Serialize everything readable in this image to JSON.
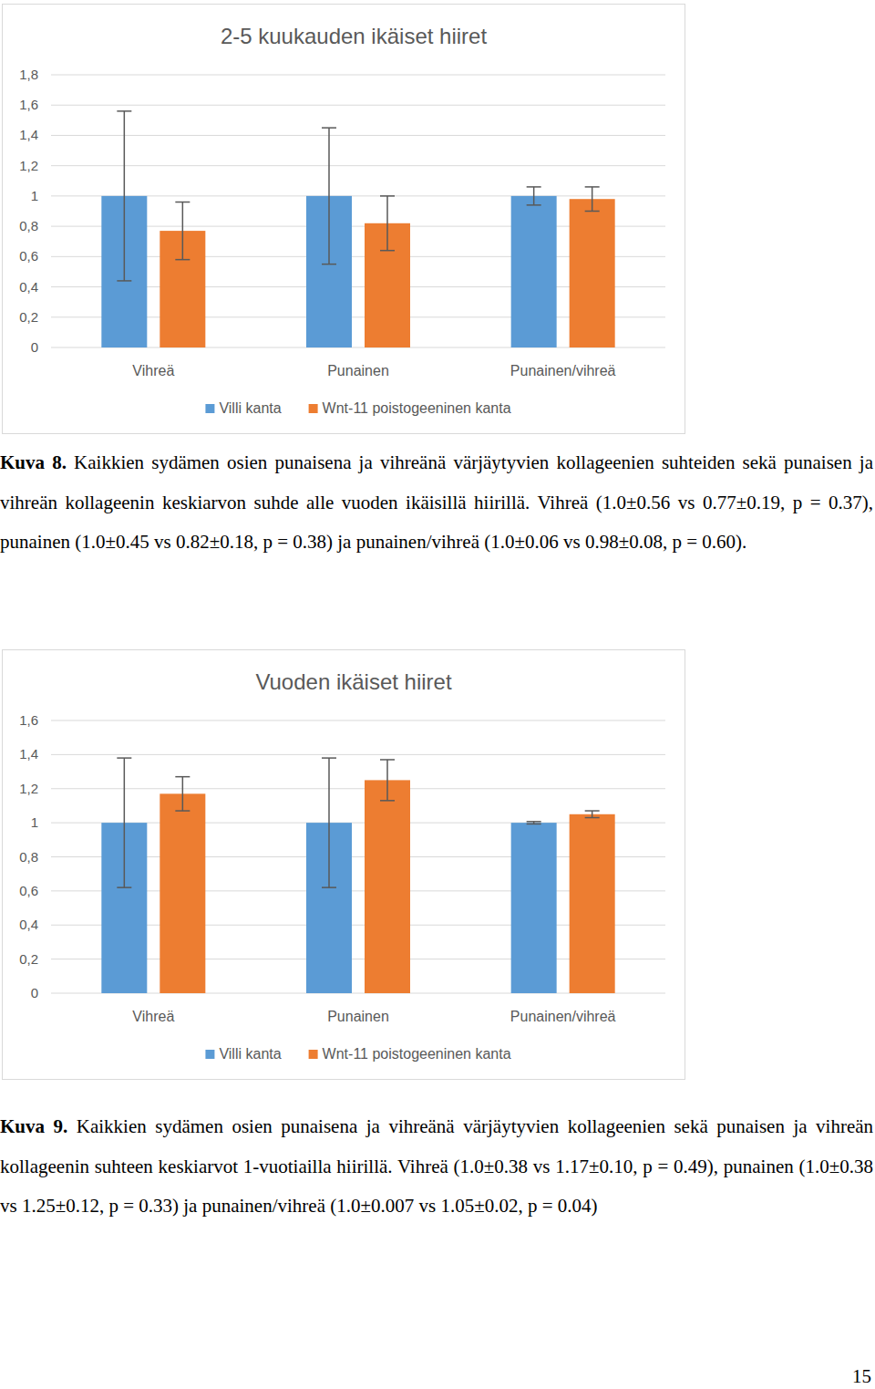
{
  "chart_data": [
    {
      "type": "bar",
      "title": "2-5 kuukauden ikäiset hiiret",
      "categories": [
        "Vihreä",
        "Punainen",
        "Punainen/vihreä"
      ],
      "series": [
        {
          "name": "Villi kanta",
          "color": "#5b9bd5",
          "values": [
            1.0,
            1.0,
            1.0
          ],
          "errors": [
            0.56,
            0.45,
            0.06
          ]
        },
        {
          "name": "Wnt-11 poistogeeninen kanta",
          "color": "#ed7d31",
          "values": [
            0.77,
            0.82,
            0.98
          ],
          "errors": [
            0.19,
            0.18,
            0.08
          ]
        }
      ],
      "ylim": [
        0,
        1.8
      ],
      "yticks": [
        0,
        {
          "value": 0.2,
          "label": "0,2"
        },
        {
          "value": 0.4,
          "label": "0,4"
        },
        {
          "value": 0.6,
          "label": "0,6"
        },
        {
          "value": 0.8,
          "label": "0,8"
        },
        1,
        {
          "value": 1.2,
          "label": "1,2"
        },
        {
          "value": 1.4,
          "label": "1,4"
        },
        {
          "value": 1.6,
          "label": "1,6"
        },
        {
          "value": 1.8,
          "label": "1,8"
        }
      ],
      "grid": true,
      "legend": "bottom"
    },
    {
      "type": "bar",
      "title": "Vuoden ikäiset hiiret",
      "categories": [
        "Vihreä",
        "Punainen",
        "Punainen/vihreä"
      ],
      "series": [
        {
          "name": "Villi kanta",
          "color": "#5b9bd5",
          "values": [
            1.0,
            1.0,
            1.0
          ],
          "errors": [
            0.38,
            0.38,
            0.007
          ]
        },
        {
          "name": "Wnt-11 poistogeeninen kanta",
          "color": "#ed7d31",
          "values": [
            1.17,
            1.25,
            1.05
          ],
          "errors": [
            0.1,
            0.12,
            0.02
          ]
        }
      ],
      "ylim": [
        0,
        1.6
      ],
      "yticks": [
        0,
        {
          "value": 0.2,
          "label": "0,2"
        },
        {
          "value": 0.4,
          "label": "0,4"
        },
        {
          "value": 0.6,
          "label": "0,6"
        },
        {
          "value": 0.8,
          "label": "0,8"
        },
        1,
        {
          "value": 1.2,
          "label": "1,2"
        },
        {
          "value": 1.4,
          "label": "1,4"
        },
        {
          "value": 1.6,
          "label": "1,6"
        }
      ],
      "grid": true,
      "legend": "bottom"
    }
  ],
  "captions": [
    {
      "label": "Kuva 8.",
      "text": "Kaikkien sydämen osien punaisena ja vihreänä värjäytyvien kollageenien suhteiden sekä punaisen ja vihreän kollageenin keskiarvon suhde alle vuoden ikäisillä hiirillä. Vihreä (1.0±0.56 vs 0.77±0.19, p = 0.37), punainen (1.0±0.45 vs 0.82±0.18, p = 0.38) ja punainen/vihreä (1.0±0.06 vs 0.98±0.08, p = 0.60)."
    },
    {
      "label": "Kuva 9.",
      "text": "Kaikkien sydämen osien punaisena ja vihreänä värjäytyvien kollageenien sekä punaisen ja vihreän kollageenin suhteen keskiarvot 1-vuotiailla hiirillä. Vihreä (1.0±0.38 vs 1.17±0.10, p = 0.49), punainen (1.0±0.38 vs 1.25±0.12, p = 0.33) ja punainen/vihreä (1.0±0.007 vs 1.05±0.02, p = 0.04)"
    }
  ],
  "page_number": 15
}
